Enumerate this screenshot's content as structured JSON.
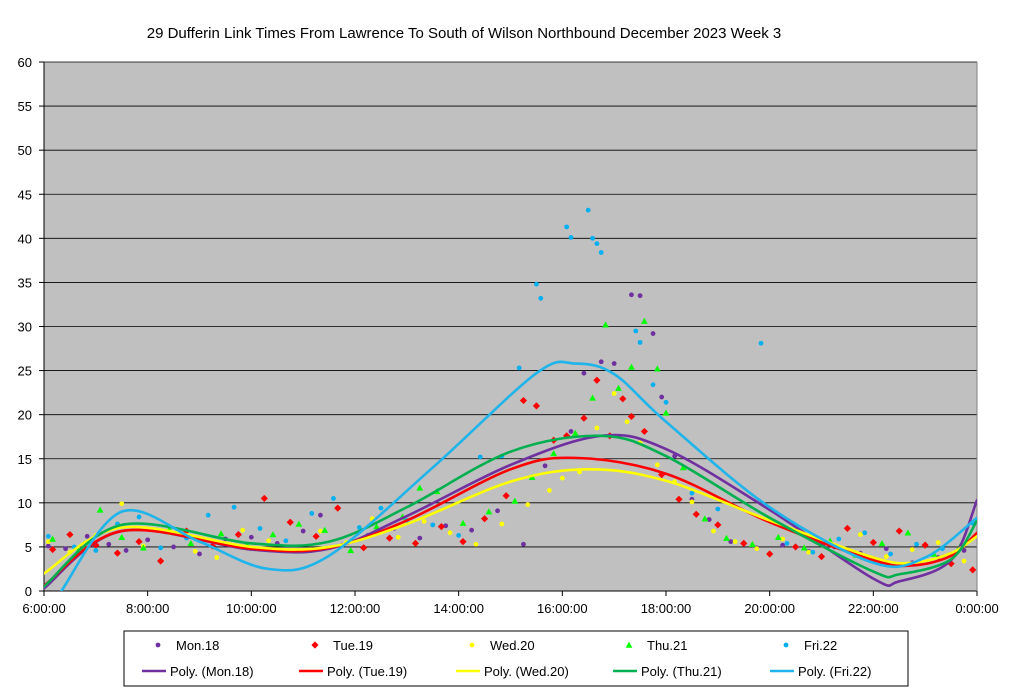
{
  "chart_data": {
    "type": "scatter",
    "title": "29 Dufferin Link Times From Lawrence To South of Wilson Northbound December 2023  Week 3",
    "xlabel": "",
    "ylabel": "",
    "ylim": [
      0,
      60
    ],
    "xlim": [
      "6:00:00",
      "0:00:00"
    ],
    "yticks": [
      "0",
      "5",
      "10",
      "15",
      "20",
      "25",
      "30",
      "35",
      "40",
      "45",
      "50",
      "55",
      "60"
    ],
    "xticks": [
      "6:00:00",
      "8:00:00",
      "10:00:00",
      "12:00:00",
      "14:00:00",
      "16:00:00",
      "18:00:00",
      "20:00:00",
      "22:00:00",
      "0:00:00"
    ],
    "grid": true,
    "legend_position": "bottom",
    "plot_background": "#c0c0c0",
    "series": [
      {
        "name": "Mon.18",
        "marker": "circle",
        "color": "#7030a0",
        "points": [
          [
            "6:05",
            5.1
          ],
          [
            "6:25",
            4.8
          ],
          [
            "6:50",
            6.2
          ],
          [
            "7:15",
            5.3
          ],
          [
            "7:35",
            4.6
          ],
          [
            "8:00",
            5.8
          ],
          [
            "8:30",
            5.0
          ],
          [
            "9:00",
            4.2
          ],
          [
            "9:30",
            5.9
          ],
          [
            "10:00",
            6.1
          ],
          [
            "10:30",
            5.4
          ],
          [
            "11:00",
            6.8
          ],
          [
            "11:20",
            8.6
          ],
          [
            "11:45",
            5.2
          ],
          [
            "12:15",
            6.3
          ],
          [
            "12:45",
            7.1
          ],
          [
            "13:15",
            6.0
          ],
          [
            "13:45",
            7.4
          ],
          [
            "14:15",
            6.9
          ],
          [
            "14:45",
            9.1
          ],
          [
            "15:15",
            5.3
          ],
          [
            "15:40",
            14.2
          ],
          [
            "16:10",
            18.1
          ],
          [
            "16:25",
            24.7
          ],
          [
            "16:45",
            26.0
          ],
          [
            "17:00",
            25.8
          ],
          [
            "17:20",
            33.6
          ],
          [
            "17:30",
            33.5
          ],
          [
            "17:45",
            29.2
          ],
          [
            "17:55",
            22.0
          ],
          [
            "18:10",
            15.3
          ],
          [
            "18:30",
            10.4
          ],
          [
            "18:50",
            8.1
          ],
          [
            "19:15",
            5.6
          ],
          [
            "19:45",
            4.9
          ],
          [
            "20:15",
            5.2
          ],
          [
            "20:45",
            4.5
          ],
          [
            "21:15",
            5.0
          ],
          [
            "21:45",
            4.3
          ],
          [
            "22:15",
            4.8
          ],
          [
            "22:45",
            3.2
          ],
          [
            "23:15",
            3.8
          ],
          [
            "23:45",
            4.6
          ]
        ],
        "trend": {
          "name": "Poly. (Mon.18)",
          "color": "#7030a0",
          "points": [
            [
              "6:00",
              0.3
            ],
            [
              "7:30",
              6.8
            ],
            [
              "10:00",
              4.7
            ],
            [
              "11:30",
              4.8
            ],
            [
              "13:00",
              8.5
            ],
            [
              "15:00",
              14.3
            ],
            [
              "16:45",
              17.6
            ],
            [
              "18:00",
              16.1
            ],
            [
              "20:00",
              9.2
            ],
            [
              "22:00",
              1.4
            ],
            [
              "22:30",
              1.1
            ],
            [
              "23:30",
              3.5
            ],
            [
              "0:00",
              10.3
            ]
          ]
        }
      },
      {
        "name": "Tue.19",
        "marker": "diamond",
        "color": "#ff0000",
        "points": [
          [
            "6:10",
            4.7
          ],
          [
            "6:30",
            6.4
          ],
          [
            "7:00",
            5.2
          ],
          [
            "7:25",
            4.3
          ],
          [
            "7:50",
            5.6
          ],
          [
            "8:15",
            3.4
          ],
          [
            "8:45",
            6.8
          ],
          [
            "9:15",
            5.1
          ],
          [
            "9:45",
            6.4
          ],
          [
            "10:15",
            10.5
          ],
          [
            "10:45",
            7.8
          ],
          [
            "11:15",
            6.2
          ],
          [
            "11:40",
            9.4
          ],
          [
            "12:10",
            4.9
          ],
          [
            "12:40",
            6.0
          ],
          [
            "13:10",
            5.4
          ],
          [
            "13:40",
            7.3
          ],
          [
            "14:05",
            5.6
          ],
          [
            "14:30",
            8.2
          ],
          [
            "14:55",
            10.8
          ],
          [
            "15:15",
            21.6
          ],
          [
            "15:30",
            21.0
          ],
          [
            "15:50",
            17.1
          ],
          [
            "16:05",
            17.6
          ],
          [
            "16:25",
            19.6
          ],
          [
            "16:40",
            23.9
          ],
          [
            "16:55",
            17.6
          ],
          [
            "17:10",
            21.8
          ],
          [
            "17:20",
            19.8
          ],
          [
            "17:35",
            18.1
          ],
          [
            "17:55",
            13.2
          ],
          [
            "18:15",
            10.4
          ],
          [
            "18:35",
            8.7
          ],
          [
            "19:00",
            7.5
          ],
          [
            "19:30",
            5.4
          ],
          [
            "20:00",
            4.2
          ],
          [
            "20:30",
            5.0
          ],
          [
            "21:00",
            3.9
          ],
          [
            "21:30",
            7.1
          ],
          [
            "22:00",
            5.5
          ],
          [
            "22:30",
            6.8
          ],
          [
            "23:00",
            5.2
          ],
          [
            "23:30",
            3.1
          ],
          [
            "23:55",
            2.4
          ]
        ],
        "trend": {
          "name": "Poly. (Tue.19)",
          "color": "#ff0000",
          "points": [
            [
              "6:00",
              0.6
            ],
            [
              "7:30",
              6.8
            ],
            [
              "10:00",
              4.8
            ],
            [
              "11:30",
              4.9
            ],
            [
              "13:00",
              8.0
            ],
            [
              "15:00",
              13.8
            ],
            [
              "16:15",
              15.1
            ],
            [
              "18:00",
              13.3
            ],
            [
              "20:00",
              7.8
            ],
            [
              "22:00",
              3.5
            ],
            [
              "22:45",
              2.9
            ],
            [
              "23:30",
              4.0
            ],
            [
              "0:00",
              6.6
            ]
          ]
        }
      },
      {
        "name": "Wed.20",
        "marker": "circle",
        "color": "#ffff00",
        "points": [
          [
            "6:05",
            5.6
          ],
          [
            "6:30",
            4.4
          ],
          [
            "7:00",
            6.3
          ],
          [
            "7:30",
            9.9
          ],
          [
            "7:55",
            5.1
          ],
          [
            "8:25",
            6.6
          ],
          [
            "8:55",
            4.5
          ],
          [
            "9:20",
            3.8
          ],
          [
            "9:50",
            6.9
          ],
          [
            "10:20",
            5.7
          ],
          [
            "10:50",
            4.6
          ],
          [
            "11:20",
            6.8
          ],
          [
            "11:50",
            5.5
          ],
          [
            "12:20",
            8.2
          ],
          [
            "12:50",
            6.1
          ],
          [
            "13:20",
            7.9
          ],
          [
            "13:50",
            6.6
          ],
          [
            "14:20",
            5.3
          ],
          [
            "14:50",
            7.6
          ],
          [
            "15:20",
            9.8
          ],
          [
            "15:45",
            11.4
          ],
          [
            "16:00",
            12.8
          ],
          [
            "16:20",
            13.5
          ],
          [
            "16:40",
            18.5
          ],
          [
            "17:00",
            22.4
          ],
          [
            "17:15",
            19.2
          ],
          [
            "17:30",
            16.8
          ],
          [
            "17:50",
            14.3
          ],
          [
            "18:10",
            12.4
          ],
          [
            "18:30",
            10.1
          ],
          [
            "18:55",
            6.8
          ],
          [
            "19:20",
            5.6
          ],
          [
            "19:45",
            4.8
          ],
          [
            "20:15",
            5.9
          ],
          [
            "20:45",
            4.4
          ],
          [
            "21:15",
            5.1
          ],
          [
            "21:45",
            6.4
          ],
          [
            "22:15",
            3.9
          ],
          [
            "22:45",
            4.7
          ],
          [
            "23:15",
            5.5
          ],
          [
            "23:45",
            3.4
          ]
        ],
        "trend": {
          "name": "Poly. (Wed.20)",
          "color": "#ffff00",
          "points": [
            [
              "6:00",
              2.0
            ],
            [
              "7:30",
              7.2
            ],
            [
              "10:00",
              5.0
            ],
            [
              "11:30",
              5.0
            ],
            [
              "13:00",
              7.6
            ],
            [
              "15:00",
              12.4
            ],
            [
              "16:30",
              13.8
            ],
            [
              "18:00",
              12.5
            ],
            [
              "20:00",
              8.0
            ],
            [
              "22:00",
              3.8
            ],
            [
              "22:45",
              3.2
            ],
            [
              "23:30",
              4.3
            ],
            [
              "0:00",
              6.2
            ]
          ]
        }
      },
      {
        "name": "Thu.21",
        "marker": "triangle",
        "color": "#00ff00",
        "points": [
          [
            "6:10",
            5.9
          ],
          [
            "6:40",
            4.6
          ],
          [
            "7:05",
            9.2
          ],
          [
            "7:30",
            6.1
          ],
          [
            "7:55",
            4.9
          ],
          [
            "8:25",
            7.0
          ],
          [
            "8:50",
            5.4
          ],
          [
            "9:25",
            6.5
          ],
          [
            "9:55",
            5.2
          ],
          [
            "10:25",
            6.4
          ],
          [
            "10:55",
            7.6
          ],
          [
            "11:25",
            6.9
          ],
          [
            "11:55",
            4.6
          ],
          [
            "12:25",
            7.3
          ],
          [
            "12:55",
            8.4
          ],
          [
            "13:15",
            11.7
          ],
          [
            "13:35",
            11.3
          ],
          [
            "14:05",
            7.7
          ],
          [
            "14:35",
            9.0
          ],
          [
            "15:05",
            10.2
          ],
          [
            "15:25",
            12.9
          ],
          [
            "15:50",
            15.6
          ],
          [
            "16:15",
            17.9
          ],
          [
            "16:35",
            21.9
          ],
          [
            "16:50",
            30.2
          ],
          [
            "17:05",
            23.0
          ],
          [
            "17:20",
            25.4
          ],
          [
            "17:35",
            30.6
          ],
          [
            "17:50",
            25.2
          ],
          [
            "18:00",
            20.2
          ],
          [
            "18:20",
            14.0
          ],
          [
            "18:45",
            8.2
          ],
          [
            "19:10",
            6.0
          ],
          [
            "19:40",
            5.3
          ],
          [
            "20:10",
            6.1
          ],
          [
            "20:40",
            4.9
          ],
          [
            "21:10",
            5.7
          ],
          [
            "21:40",
            4.1
          ],
          [
            "22:10",
            5.4
          ],
          [
            "22:40",
            6.6
          ],
          [
            "23:10",
            4.2
          ],
          [
            "23:40",
            5.0
          ]
        ],
        "trend": {
          "name": "Poly. (Thu.21)",
          "color": "#00b050",
          "points": [
            [
              "6:00",
              0.5
            ],
            [
              "7:30",
              7.5
            ],
            [
              "10:00",
              5.4
            ],
            [
              "11:30",
              5.6
            ],
            [
              "13:00",
              9.5
            ],
            [
              "15:00",
              15.8
            ],
            [
              "16:45",
              17.6
            ],
            [
              "18:00",
              15.3
            ],
            [
              "20:00",
              8.3
            ],
            [
              "22:00",
              2.2
            ],
            [
              "22:30",
              1.9
            ],
            [
              "23:30",
              3.6
            ],
            [
              "0:00",
              8.0
            ]
          ]
        }
      },
      {
        "name": "Fri.22",
        "marker": "circle",
        "color": "#00b0f0",
        "points": [
          [
            "6:05",
            6.2
          ],
          [
            "6:35",
            5.0
          ],
          [
            "7:00",
            4.6
          ],
          [
            "7:25",
            7.6
          ],
          [
            "7:50",
            8.4
          ],
          [
            "8:15",
            4.9
          ],
          [
            "8:45",
            6.0
          ],
          [
            "9:10",
            8.6
          ],
          [
            "9:40",
            9.5
          ],
          [
            "10:10",
            7.1
          ],
          [
            "10:40",
            5.7
          ],
          [
            "11:10",
            8.8
          ],
          [
            "11:35",
            10.5
          ],
          [
            "12:05",
            7.2
          ],
          [
            "12:30",
            9.4
          ],
          [
            "13:00",
            8.0
          ],
          [
            "13:30",
            7.5
          ],
          [
            "14:00",
            6.3
          ],
          [
            "14:25",
            15.2
          ],
          [
            "14:50",
            15.3
          ],
          [
            "15:10",
            25.3
          ],
          [
            "15:30",
            34.8
          ],
          [
            "15:35",
            33.2
          ],
          [
            "16:05",
            41.3
          ],
          [
            "16:10",
            40.1
          ],
          [
            "16:30",
            43.2
          ],
          [
            "16:35",
            40.0
          ],
          [
            "16:40",
            39.4
          ],
          [
            "16:45",
            38.4
          ],
          [
            "17:25",
            29.5
          ],
          [
            "17:30",
            28.2
          ],
          [
            "17:45",
            23.4
          ],
          [
            "18:00",
            21.4
          ],
          [
            "18:30",
            11.1
          ],
          [
            "19:00",
            9.3
          ],
          [
            "19:50",
            28.1
          ],
          [
            "20:20",
            5.4
          ],
          [
            "20:50",
            4.4
          ],
          [
            "21:20",
            5.9
          ],
          [
            "21:50",
            6.6
          ],
          [
            "22:20",
            4.2
          ],
          [
            "22:50",
            5.3
          ],
          [
            "23:20",
            4.8
          ],
          [
            "23:55",
            7.7
          ]
        ],
        "trend": {
          "name": "Poly. (Fri.22)",
          "color": "#1fb4ea",
          "points": [
            [
              "6:20",
              0.0
            ],
            [
              "7:30",
              9.0
            ],
            [
              "9:00",
              5.6
            ],
            [
              "10:20",
              2.5
            ],
            [
              "11:30",
              4.0
            ],
            [
              "13:30",
              14.0
            ],
            [
              "15:30",
              24.7
            ],
            [
              "16:15",
              25.8
            ],
            [
              "17:00",
              24.6
            ],
            [
              "18:00",
              19.2
            ],
            [
              "20:00",
              9.5
            ],
            [
              "22:00",
              3.2
            ],
            [
              "23:00",
              3.8
            ],
            [
              "0:00",
              8.3
            ]
          ]
        }
      }
    ]
  }
}
